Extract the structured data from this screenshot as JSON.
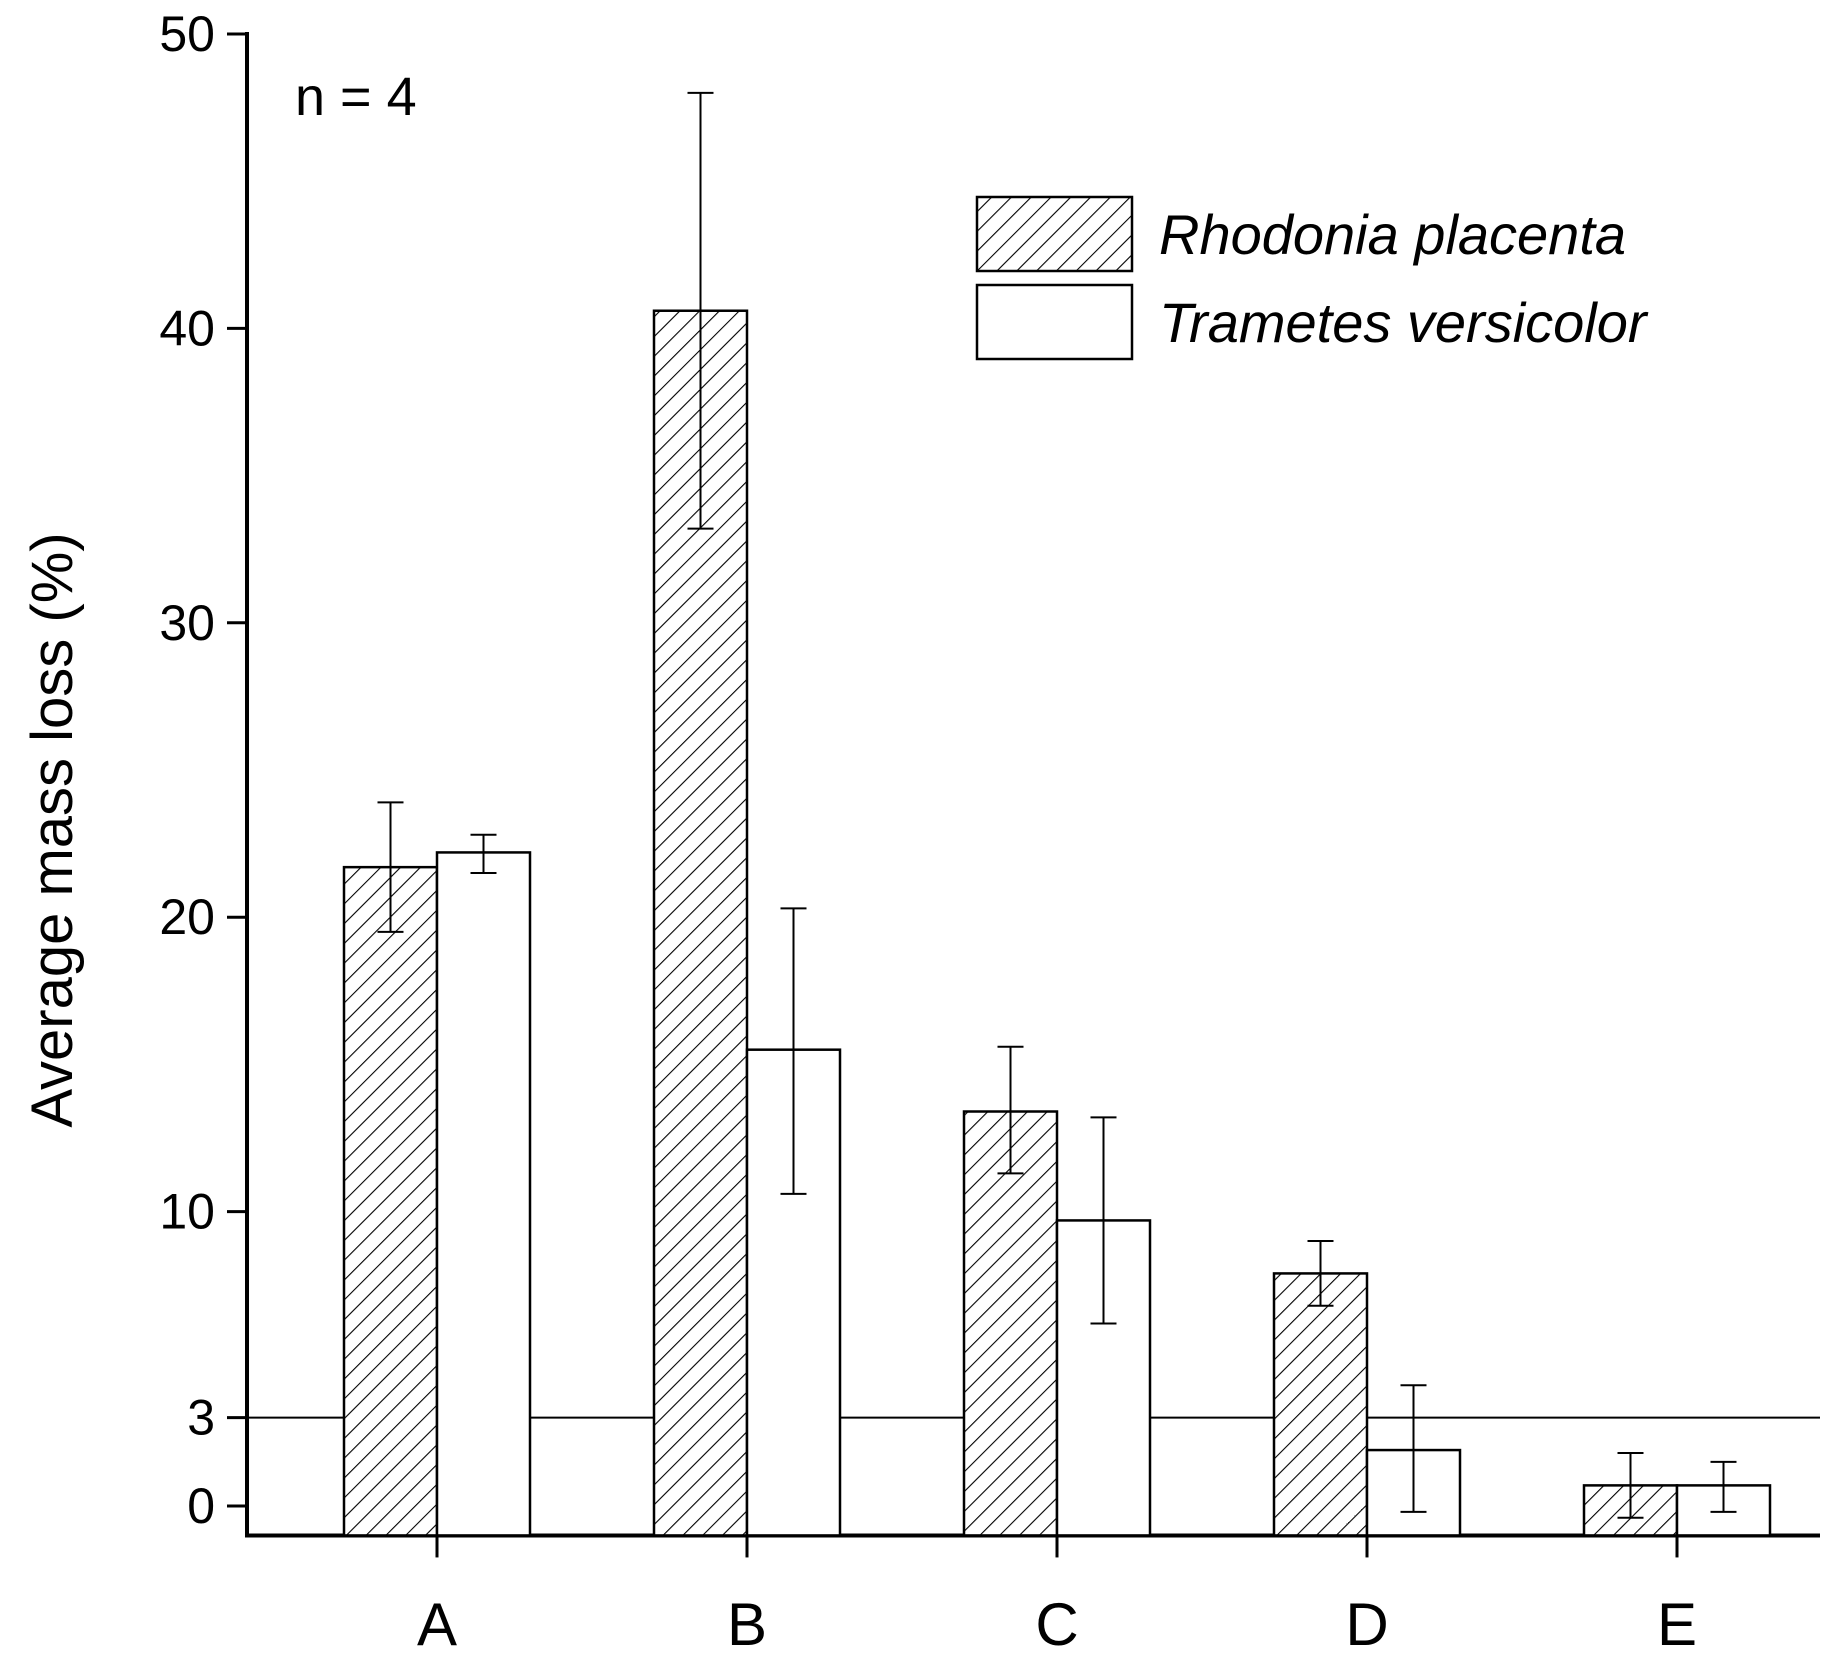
{
  "chart_data": {
    "type": "bar",
    "title": "",
    "xlabel": "",
    "ylabel": "Average mass loss (%)",
    "annotation": "n = 4",
    "categories": [
      "A",
      "B",
      "C",
      "D",
      "E"
    ],
    "ylim": [
      -1,
      50
    ],
    "yticks": [
      0,
      3,
      10,
      20,
      30,
      40,
      50
    ],
    "yticks_labels": [
      "0",
      "3",
      "10",
      "20",
      "30",
      "40",
      "50"
    ],
    "reference_line": {
      "y": 3
    },
    "legend_position": "top-right",
    "grid": false,
    "series": [
      {
        "name": "Rhodonia placenta",
        "style": "hatched",
        "values": [
          21.7,
          40.6,
          13.4,
          7.9,
          0.7
        ],
        "error_low": [
          19.5,
          33.2,
          11.3,
          6.8,
          -0.4
        ],
        "error_high": [
          23.9,
          48.0,
          15.6,
          9.0,
          1.8
        ]
      },
      {
        "name": "Trametes versicolor",
        "style": "open",
        "values": [
          22.2,
          15.5,
          9.7,
          1.9,
          0.7
        ],
        "error_low": [
          21.5,
          10.6,
          6.2,
          -0.2,
          -0.2
        ],
        "error_high": [
          22.8,
          20.3,
          13.2,
          4.1,
          1.5
        ]
      }
    ]
  }
}
